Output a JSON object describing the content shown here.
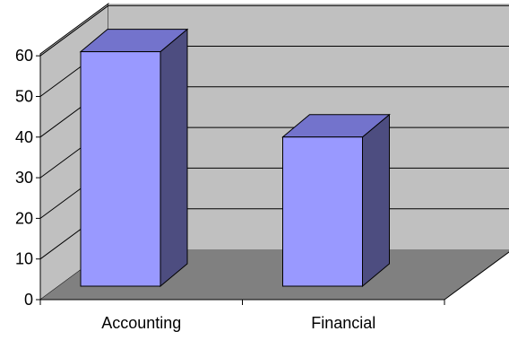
{
  "chart_data": {
    "type": "bar",
    "title": "",
    "xlabel": "",
    "ylabel": "",
    "categories": [
      "Accounting",
      "Financial"
    ],
    "values": [
      61,
      40
    ],
    "ylim": [
      0,
      60
    ],
    "y_ticks": [
      "0",
      "10",
      "20",
      "30",
      "40",
      "50",
      "60"
    ],
    "grid": true,
    "legend": "none",
    "style": "3d-column",
    "colors": {
      "bar_front": "#9999ff",
      "bar_top": "#7373cc",
      "bar_side": "#4d4d80",
      "wall": "#c0c0c0",
      "floor": "#808080",
      "bar_edge": "#000000",
      "grid": "#000000"
    }
  }
}
